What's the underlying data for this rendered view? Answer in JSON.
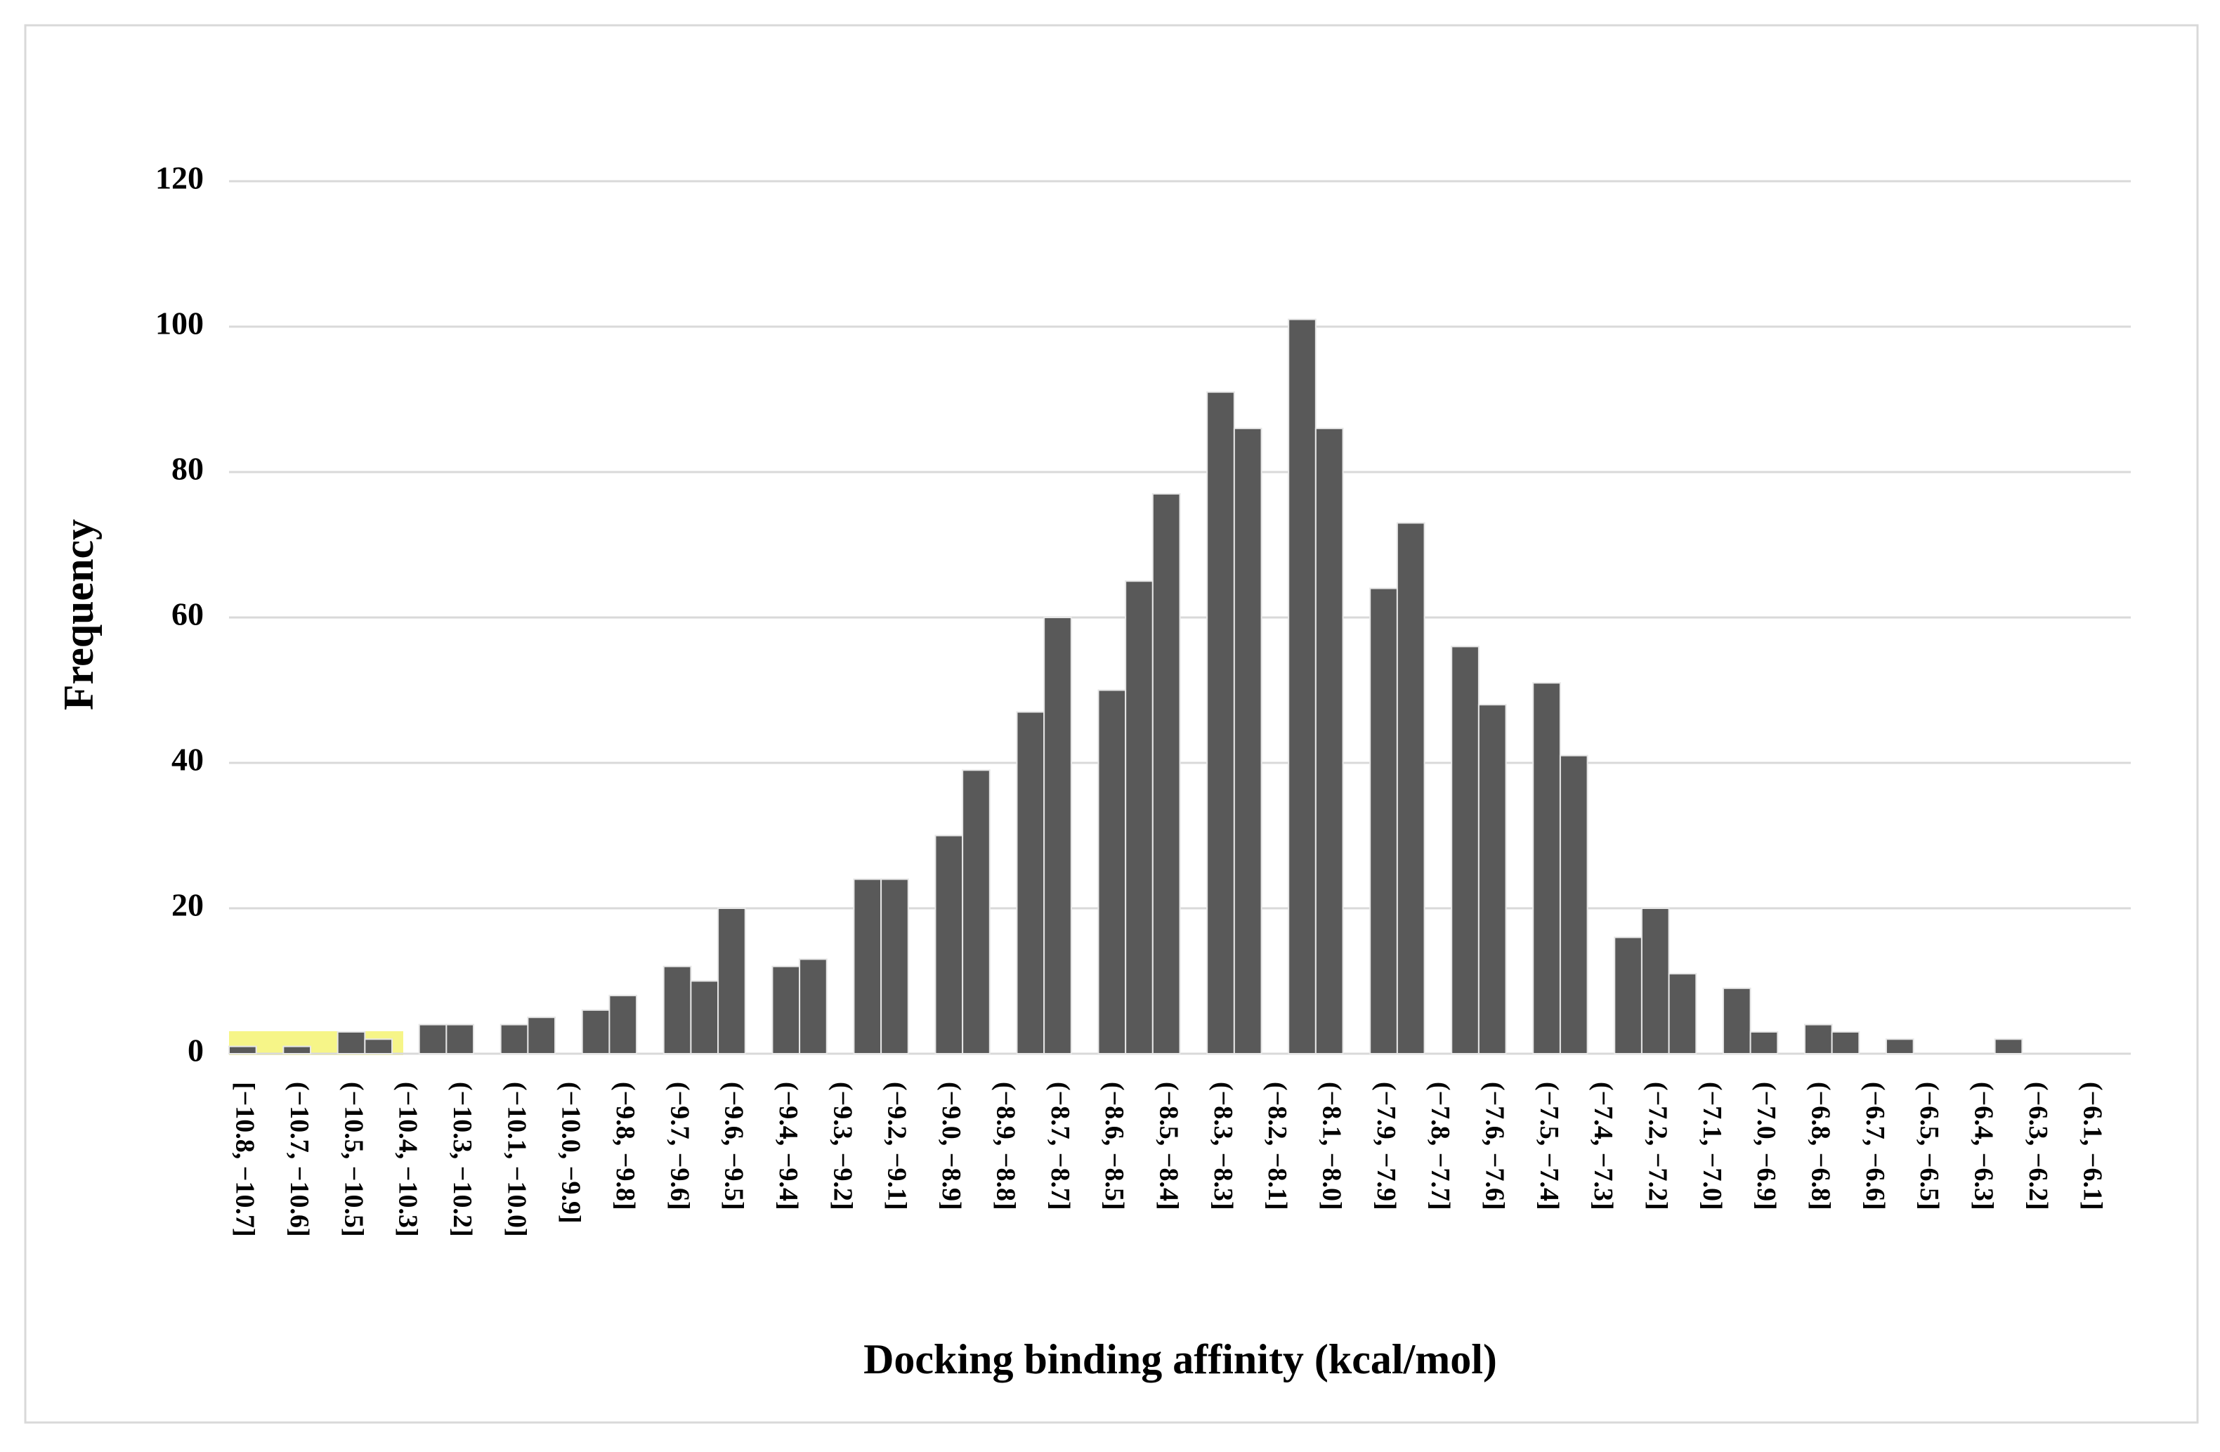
{
  "chart_data": {
    "type": "bar",
    "xlabel": "Docking binding affinity (kcal/mol)",
    "ylabel": "Frequency",
    "categories": [
      "[−10.8, −10.7]",
      null,
      "(−10.7, −10.6]",
      null,
      "(−10.5, −10.5]",
      null,
      "(−10.4, −10.3]",
      null,
      "(−10.3, −10.2]",
      null,
      "(−10.1, −10.0]",
      null,
      "(−10.0, −9.9]",
      null,
      "(−9.8, −9.8]",
      null,
      "(−9.7, −9.6]",
      null,
      "(−9.6, −9.5]",
      null,
      "(−9.4, −9.4]",
      null,
      "(−9.3, −9.2]",
      null,
      "(−9.2, −9.1]",
      null,
      "(−9.0, −8.9]",
      null,
      "(−8.9, −8.8]",
      null,
      "(−8.7, −8.7]",
      null,
      "(−8.6, −8.5]",
      null,
      "(−8.5, −8.4]",
      null,
      "(−8.3, −8.3]",
      null,
      "(−8.2, −8.1]",
      null,
      "(−8.1, −8.0]",
      null,
      "(−7.9, −7.9]",
      null,
      "(−7.8, −7.7]",
      null,
      "(−7.6, −7.6]",
      null,
      "(−7.5, −7.4]",
      null,
      "(−7.4, −7.3]",
      null,
      "(−7.2, −7.2]",
      null,
      "(−7.1, −7.0]",
      null,
      "(−7.0, −6.9]",
      null,
      "(−6.8, −6.8]",
      null,
      "(−6.7, −6.6]",
      null,
      "(−6.5, −6.5]",
      null,
      "(−6.4, −6.3]",
      null,
      "(−6.3, −6.2]",
      null,
      "(−6.1, −6.1]",
      null
    ],
    "values": [
      1,
      0,
      1,
      0,
      3,
      2,
      0,
      4,
      4,
      0,
      4,
      5,
      0,
      6,
      8,
      0,
      12,
      10,
      20,
      0,
      12,
      13,
      0,
      24,
      24,
      0,
      30,
      39,
      0,
      47,
      60,
      0,
      50,
      65,
      77,
      0,
      91,
      86,
      0,
      101,
      86,
      0,
      64,
      73,
      0,
      56,
      48,
      0,
      51,
      41,
      0,
      16,
      20,
      11,
      0,
      9,
      3,
      0,
      4,
      3,
      0,
      2,
      0,
      0,
      0,
      2,
      0,
      0,
      0,
      0
    ],
    "color": "#595959",
    "ylim": [
      0,
      120
    ],
    "yticks": [
      0,
      20,
      40,
      60,
      80,
      100,
      120
    ],
    "grid": true
  }
}
